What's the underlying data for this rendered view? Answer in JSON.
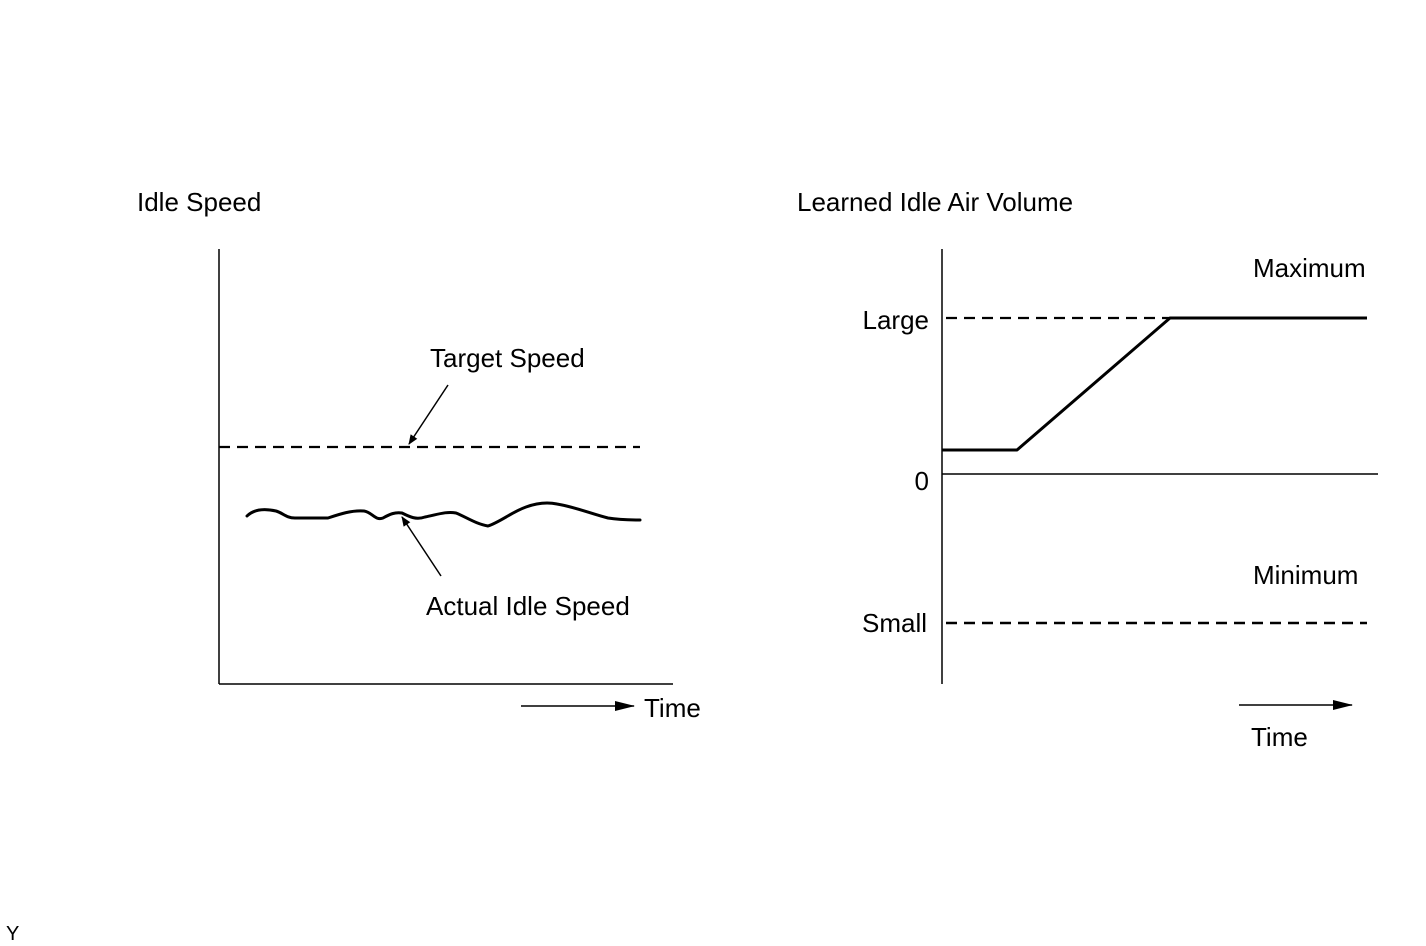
{
  "left_diagram": {
    "y_axis_title": "Idle Speed",
    "target_label": "Target Speed",
    "actual_label": "Actual Idle Speed",
    "time_label": "Time"
  },
  "right_diagram": {
    "title": "Learned Idle Air Volume",
    "max_label": "Maximum",
    "min_label": "Minimum",
    "large_label": "Large",
    "zero_label": "0",
    "small_label": "Small",
    "time_label": "Time"
  },
  "corner_mark": "Y",
  "colors": {
    "ink": "#000000",
    "background": "#ffffff"
  }
}
